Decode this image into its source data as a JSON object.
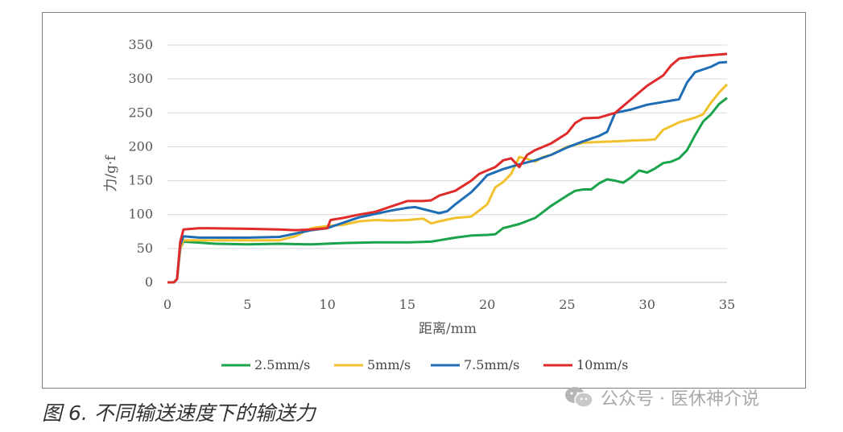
{
  "chart_data": {
    "type": "line",
    "xlabel": "距离/mm",
    "ylabel": "力/g·f",
    "xlim": [
      0,
      35
    ],
    "ylim": [
      0,
      350
    ],
    "xticks": [
      0,
      5,
      10,
      15,
      20,
      25,
      30,
      35
    ],
    "yticks": [
      0,
      50,
      100,
      150,
      200,
      250,
      300,
      350
    ],
    "grid": "horizontal",
    "legend_position": "bottom",
    "series": [
      {
        "name": "2.5mm/s",
        "color": "#1aa34a",
        "points": [
          [
            0,
            0
          ],
          [
            0.4,
            0
          ],
          [
            0.6,
            5
          ],
          [
            0.8,
            50
          ],
          [
            1.0,
            60
          ],
          [
            3,
            57
          ],
          [
            5,
            56
          ],
          [
            7,
            57
          ],
          [
            9,
            56
          ],
          [
            11,
            58
          ],
          [
            13,
            59
          ],
          [
            15,
            59
          ],
          [
            16.5,
            60
          ],
          [
            17,
            62
          ],
          [
            18,
            66
          ],
          [
            19,
            69
          ],
          [
            20,
            70
          ],
          [
            20.5,
            71
          ],
          [
            21,
            80
          ],
          [
            22,
            86
          ],
          [
            23,
            95
          ],
          [
            24,
            113
          ],
          [
            25,
            128
          ],
          [
            25.5,
            135
          ],
          [
            26,
            137
          ],
          [
            26.5,
            137
          ],
          [
            27,
            146
          ],
          [
            27.5,
            152
          ],
          [
            28,
            150
          ],
          [
            28.5,
            147
          ],
          [
            29,
            155
          ],
          [
            29.5,
            165
          ],
          [
            30,
            162
          ],
          [
            30.5,
            168
          ],
          [
            31,
            176
          ],
          [
            31.5,
            178
          ],
          [
            32,
            183
          ],
          [
            32.5,
            195
          ],
          [
            33,
            217
          ],
          [
            33.5,
            237
          ],
          [
            34,
            248
          ],
          [
            34.5,
            263
          ],
          [
            35,
            272
          ]
        ]
      },
      {
        "name": "5mm/s",
        "color": "#f2c12e",
        "points": [
          [
            0,
            0
          ],
          [
            0.4,
            0
          ],
          [
            0.6,
            5
          ],
          [
            0.8,
            50
          ],
          [
            1.0,
            62
          ],
          [
            3,
            62
          ],
          [
            5,
            62
          ],
          [
            7,
            62
          ],
          [
            8,
            68
          ],
          [
            9,
            80
          ],
          [
            10,
            83
          ],
          [
            11,
            85
          ],
          [
            12,
            90
          ],
          [
            13,
            92
          ],
          [
            14,
            91
          ],
          [
            15,
            92
          ],
          [
            16,
            94
          ],
          [
            16.5,
            87
          ],
          [
            17,
            90
          ],
          [
            18,
            95
          ],
          [
            19,
            97
          ],
          [
            20,
            115
          ],
          [
            20.5,
            140
          ],
          [
            21,
            148
          ],
          [
            21.5,
            160
          ],
          [
            22,
            185
          ],
          [
            22.5,
            182
          ],
          [
            23,
            178
          ],
          [
            23.5,
            185
          ],
          [
            24,
            188
          ],
          [
            25,
            200
          ],
          [
            26,
            206
          ],
          [
            27,
            207
          ],
          [
            28,
            208
          ],
          [
            29,
            209
          ],
          [
            30,
            210
          ],
          [
            30.5,
            211
          ],
          [
            31,
            225
          ],
          [
            32,
            236
          ],
          [
            33,
            243
          ],
          [
            33.5,
            248
          ],
          [
            34,
            265
          ],
          [
            34.5,
            280
          ],
          [
            35,
            292
          ]
        ]
      },
      {
        "name": "7.5mm/s",
        "color": "#1f6db5",
        "points": [
          [
            0,
            0
          ],
          [
            0.4,
            0
          ],
          [
            0.6,
            5
          ],
          [
            0.8,
            55
          ],
          [
            1.0,
            68
          ],
          [
            2,
            66
          ],
          [
            3,
            66
          ],
          [
            5,
            66
          ],
          [
            7,
            67
          ],
          [
            8,
            72
          ],
          [
            9,
            77
          ],
          [
            10,
            80
          ],
          [
            11,
            88
          ],
          [
            12,
            96
          ],
          [
            13,
            101
          ],
          [
            14,
            106
          ],
          [
            15,
            110
          ],
          [
            15.5,
            111
          ],
          [
            16,
            108
          ],
          [
            17,
            102
          ],
          [
            17.5,
            105
          ],
          [
            18,
            115
          ],
          [
            19,
            133
          ],
          [
            19.5,
            145
          ],
          [
            20,
            158
          ],
          [
            21,
            167
          ],
          [
            22,
            174
          ],
          [
            23,
            180
          ],
          [
            24,
            188
          ],
          [
            25,
            199
          ],
          [
            26,
            208
          ],
          [
            27,
            216
          ],
          [
            27.5,
            222
          ],
          [
            28,
            250
          ],
          [
            29,
            255
          ],
          [
            30,
            262
          ],
          [
            31,
            266
          ],
          [
            32,
            270
          ],
          [
            32.5,
            295
          ],
          [
            33,
            310
          ],
          [
            34,
            318
          ],
          [
            34.5,
            324
          ],
          [
            35,
            325
          ]
        ]
      },
      {
        "name": "10mm/s",
        "color": "#e02b2b",
        "points": [
          [
            0,
            0
          ],
          [
            0.4,
            0
          ],
          [
            0.6,
            5
          ],
          [
            0.8,
            60
          ],
          [
            1.0,
            78
          ],
          [
            2,
            80
          ],
          [
            5,
            79
          ],
          [
            7,
            78
          ],
          [
            8,
            77
          ],
          [
            9,
            78
          ],
          [
            10,
            80
          ],
          [
            10.2,
            92
          ],
          [
            11,
            95
          ],
          [
            12,
            100
          ],
          [
            13,
            104
          ],
          [
            14,
            112
          ],
          [
            15,
            120
          ],
          [
            16,
            120
          ],
          [
            16.5,
            121
          ],
          [
            17,
            128
          ],
          [
            18,
            135
          ],
          [
            19,
            150
          ],
          [
            19.5,
            160
          ],
          [
            20,
            165
          ],
          [
            20.5,
            170
          ],
          [
            21,
            180
          ],
          [
            21.5,
            183
          ],
          [
            22,
            170
          ],
          [
            22.5,
            188
          ],
          [
            23,
            195
          ],
          [
            24,
            205
          ],
          [
            25,
            220
          ],
          [
            25.5,
            235
          ],
          [
            26,
            242
          ],
          [
            27,
            243
          ],
          [
            28,
            250
          ],
          [
            29,
            270
          ],
          [
            30,
            290
          ],
          [
            31,
            305
          ],
          [
            31.5,
            320
          ],
          [
            32,
            330
          ],
          [
            33,
            333
          ],
          [
            34,
            335
          ],
          [
            35,
            337
          ]
        ]
      }
    ]
  },
  "caption": "图 6. 不同输送速度下的输送力",
  "watermark": {
    "icon": "wechat-icon",
    "text": "公众号 · 医休神介说"
  }
}
